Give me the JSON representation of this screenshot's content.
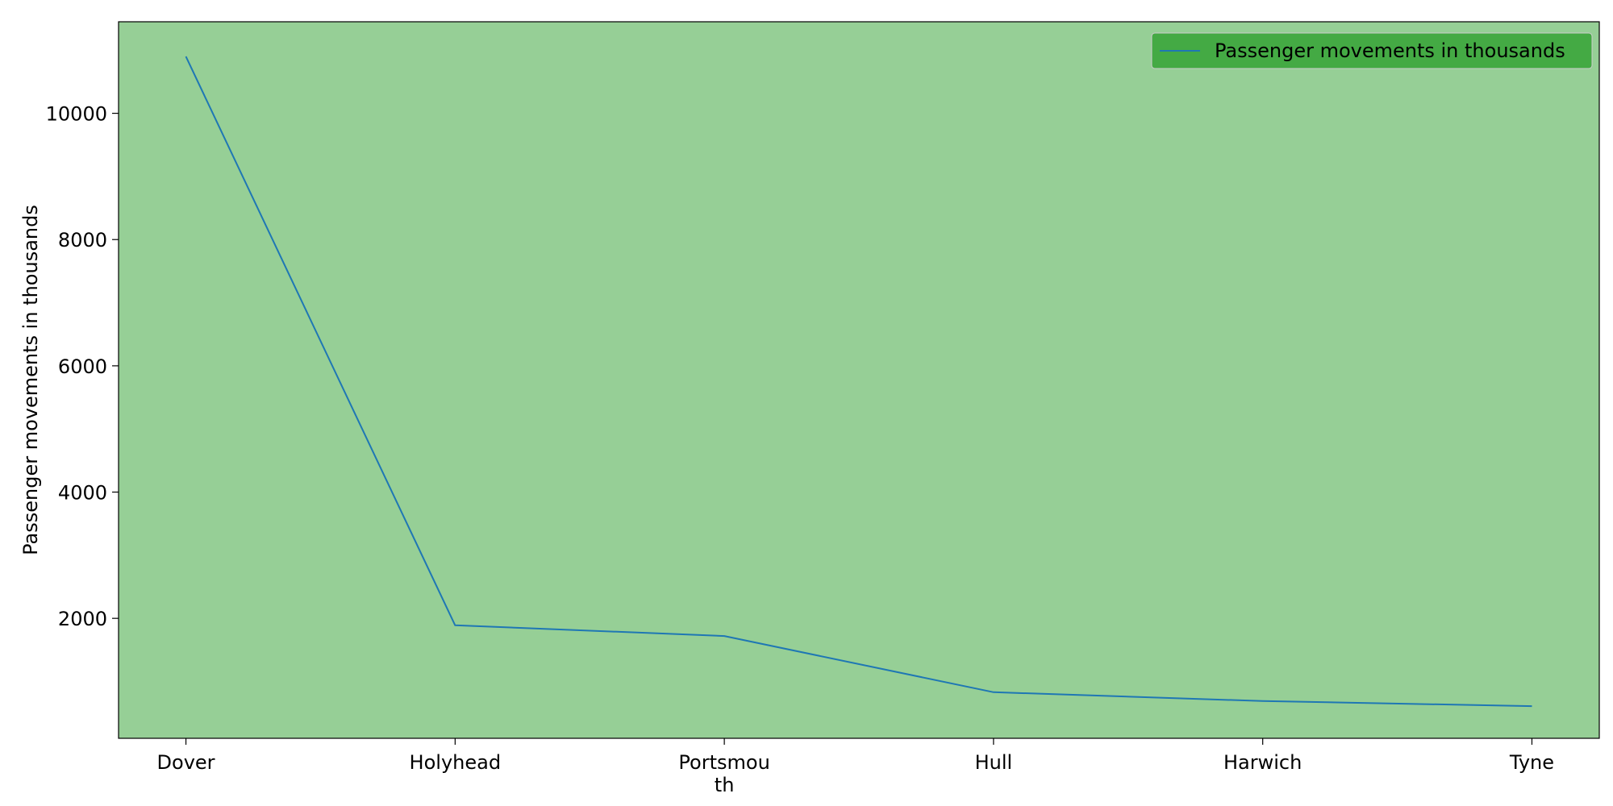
{
  "chart_data": {
    "type": "line",
    "title": "",
    "xlabel": "",
    "ylabel": "Passenger movements in thousands",
    "categories": [
      "Dover",
      "Holyhead",
      "Portsmouth",
      "Hull",
      "Harwich",
      "Tyne"
    ],
    "category_tick_labels": [
      "Dover",
      "Holyhead",
      "Portsmou\nth",
      "Hull",
      "Harwich",
      "Tyne"
    ],
    "series": [
      {
        "name": "Passenger movements in thousands",
        "values": [
          10900,
          1890,
          1720,
          830,
          690,
          610
        ],
        "color": "#1f77b4"
      }
    ],
    "yticks": [
      2000,
      4000,
      6000,
      8000,
      10000
    ],
    "ylim": [
      100,
      11450
    ],
    "grid": false,
    "legend": {
      "position": "top-right"
    },
    "colors": {
      "plot_background": "#96cf96",
      "legend_background": "#44aa44",
      "figure_background": "#ffffff"
    }
  }
}
